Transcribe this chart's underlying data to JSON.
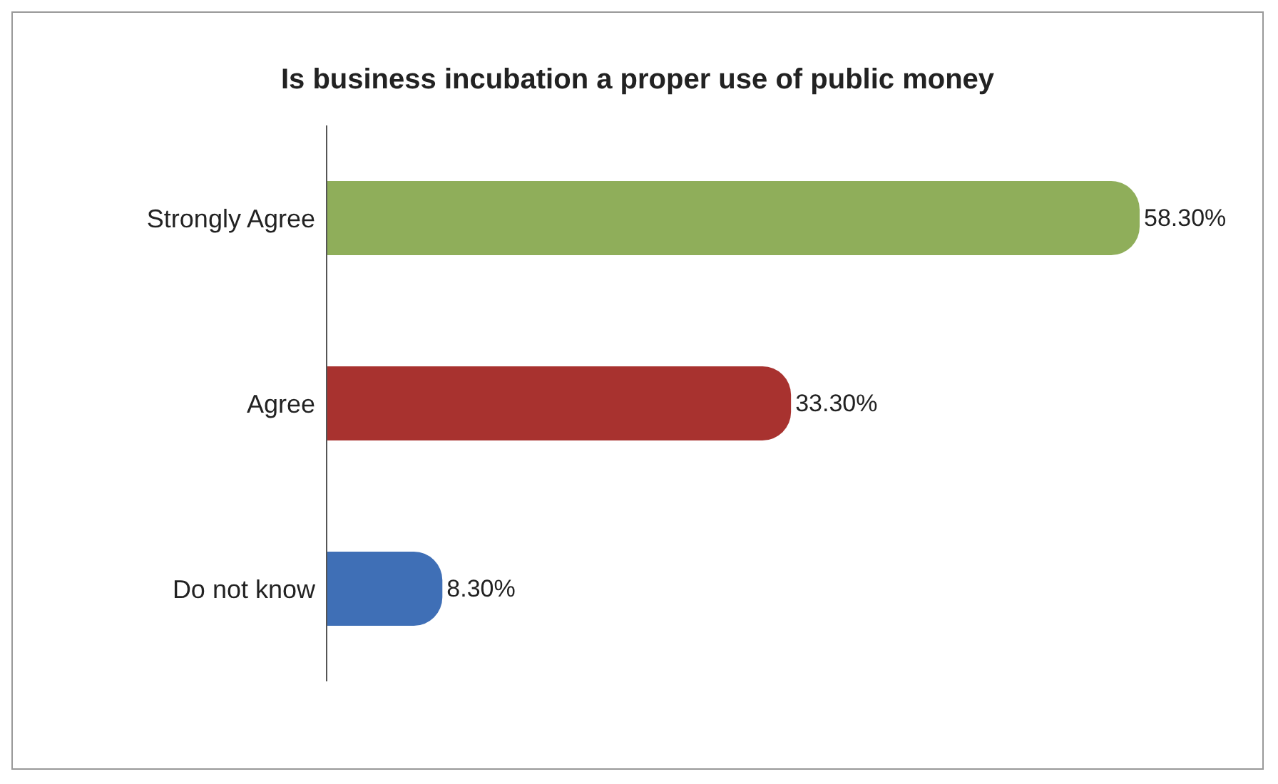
{
  "chart_data": {
    "type": "bar",
    "orientation": "horizontal",
    "title": "Is business incubation a proper use of public money",
    "categories": [
      "Strongly Agree",
      "Agree",
      "Do not know"
    ],
    "values": [
      58.3,
      33.3,
      8.3
    ],
    "colors": [
      "#8fae5a",
      "#a8322f",
      "#3f6fb6"
    ],
    "value_labels": [
      "58.30%",
      "33.30%",
      "8.30%"
    ],
    "tick_labels": "y",
    "grid": false
  }
}
